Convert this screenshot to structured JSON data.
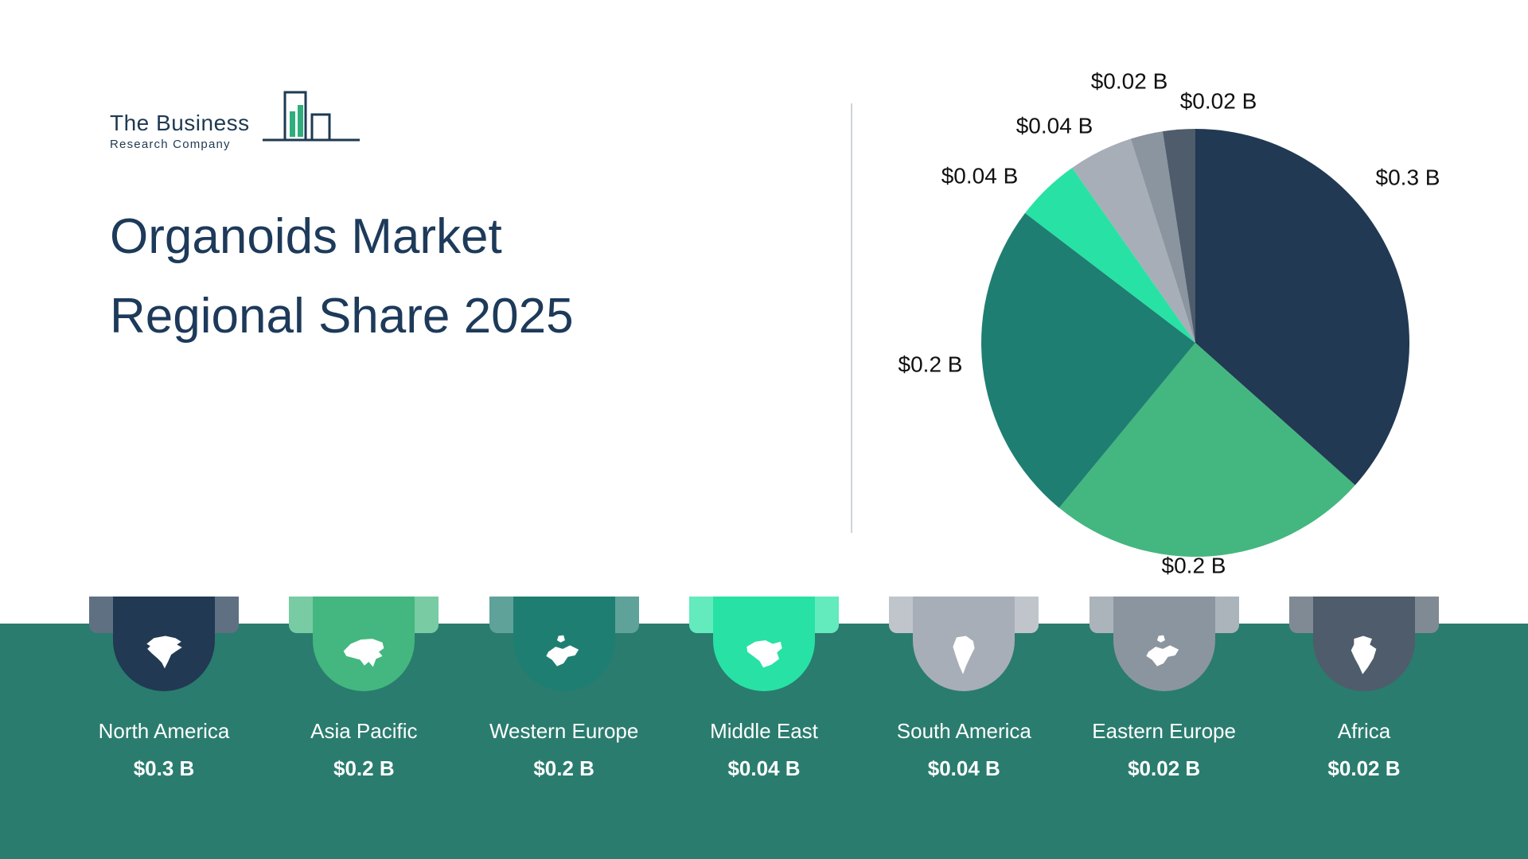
{
  "logo": {
    "line1": "The Business",
    "line2": "Research Company"
  },
  "title": {
    "line1": "Organoids Market",
    "line2": "Regional Share 2025"
  },
  "colors": {
    "band": "#2A7C6E",
    "title": "#1D3A5A",
    "logo_navy": "#1E3A52",
    "logo_green": "#2FAE7D",
    "pie_label": "#111111"
  },
  "chart_data": {
    "type": "pie",
    "title": "Organoids Market Regional Share 2025",
    "legend_position": "bottom",
    "regions": [
      {
        "name": "North America",
        "value": 0.3,
        "label": "$0.3 B",
        "color": "#213953"
      },
      {
        "name": "Asia Pacific",
        "value": 0.2,
        "label": "$0.2 B",
        "color": "#43B77F"
      },
      {
        "name": "Western Europe",
        "value": 0.2,
        "label": "$0.2 B",
        "color": "#1F7E72"
      },
      {
        "name": "Middle East",
        "value": 0.04,
        "label": "$0.04 B",
        "color": "#27E2A4"
      },
      {
        "name": "South America",
        "value": 0.04,
        "label": "$0.04 B",
        "color": "#A7AEB8"
      },
      {
        "name": "Eastern Europe",
        "value": 0.02,
        "label": "$0.02 B",
        "color": "#8B95A0"
      },
      {
        "name": "Africa",
        "value": 0.02,
        "label": "$0.02 B",
        "color": "#4E5C6B"
      }
    ]
  }
}
